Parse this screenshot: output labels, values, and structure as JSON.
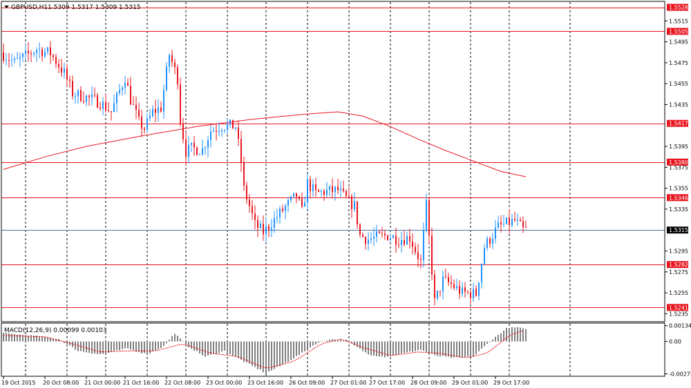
{
  "chart_data": {
    "type": "candlestick",
    "main": {
      "title": "GBPUSD,H1",
      "ohlc_label": "1.5309 1.5317 1.5309 1.5315",
      "ylim": [
        1.5228,
        1.5533
      ],
      "ticks": [
        "1.5515",
        "1.5495",
        "1.5475",
        "1.5455",
        "1.5435",
        "1.5395",
        "1.5375",
        "1.5355",
        "1.5335",
        "1.5295",
        "1.5275",
        "1.5255",
        "1.5235"
      ],
      "levels": [
        {
          "value": 1.5528,
          "label": "1.5528"
        },
        {
          "value": 1.5505,
          "label": "1.5505"
        },
        {
          "value": 1.5417,
          "label": "1.5417"
        },
        {
          "value": 1.538,
          "label": "1.5380"
        },
        {
          "value": 1.5346,
          "label": "1.5346"
        },
        {
          "value": 1.5282,
          "label": "1.5282"
        },
        {
          "value": 1.5241,
          "label": "1.5241"
        }
      ],
      "current_price": {
        "value": 1.5315,
        "label": "1.5315"
      },
      "moving_average": [
        [
          0,
          1.5373
        ],
        [
          15,
          1.5385
        ],
        [
          30,
          1.5395
        ],
        [
          50,
          1.5405
        ],
        [
          70,
          1.5414
        ],
        [
          90,
          1.5421
        ],
        [
          110,
          1.5426
        ],
        [
          121,
          1.5428
        ],
        [
          130,
          1.5424
        ],
        [
          140,
          1.5414
        ],
        [
          150,
          1.5402
        ],
        [
          160,
          1.5391
        ],
        [
          170,
          1.5381
        ],
        [
          180,
          1.5371
        ],
        [
          189,
          1.5366
        ]
      ],
      "candles_anchor": [
        [
          0,
          1.5485
        ],
        [
          5,
          1.5475
        ],
        [
          13,
          1.5488
        ],
        [
          18,
          1.5484
        ],
        [
          23,
          1.5465
        ],
        [
          26,
          1.5446
        ],
        [
          32,
          1.5441
        ],
        [
          36,
          1.5437
        ],
        [
          40,
          1.5428
        ],
        [
          43,
          1.5448
        ],
        [
          45,
          1.5461
        ],
        [
          47,
          1.544
        ],
        [
          50,
          1.5418
        ],
        [
          52,
          1.5412
        ],
        [
          55,
          1.5428
        ],
        [
          58,
          1.5432
        ],
        [
          61,
          1.5483
        ],
        [
          64,
          1.546
        ],
        [
          65,
          1.542
        ],
        [
          67,
          1.539
        ],
        [
          69,
          1.5393
        ],
        [
          73,
          1.5392
        ],
        [
          76,
          1.541
        ],
        [
          80,
          1.5415
        ],
        [
          85,
          1.5414
        ],
        [
          87,
          1.538
        ],
        [
          88,
          1.5354
        ],
        [
          90,
          1.5338
        ],
        [
          92,
          1.532
        ],
        [
          95,
          1.5313
        ],
        [
          98,
          1.5322
        ],
        [
          103,
          1.5337
        ],
        [
          107,
          1.5348
        ],
        [
          109,
          1.5332
        ],
        [
          111,
          1.536
        ],
        [
          114,
          1.535
        ],
        [
          118,
          1.5352
        ],
        [
          122,
          1.5353
        ],
        [
          126,
          1.5342
        ],
        [
          128,
          1.5338
        ],
        [
          130,
          1.531
        ],
        [
          133,
          1.5306
        ],
        [
          136,
          1.5308
        ],
        [
          140,
          1.531
        ],
        [
          144,
          1.5306
        ],
        [
          148,
          1.5308
        ],
        [
          150,
          1.5296
        ],
        [
          152,
          1.5284
        ],
        [
          154,
          1.5338
        ],
        [
          157,
          1.5246
        ],
        [
          160,
          1.5267
        ],
        [
          163,
          1.5263
        ],
        [
          167,
          1.5255
        ],
        [
          172,
          1.5254
        ],
        [
          175,
          1.5299
        ],
        [
          180,
          1.5318
        ],
        [
          184,
          1.5322
        ],
        [
          186,
          1.5324
        ],
        [
          189,
          1.5315
        ]
      ]
    },
    "macd": {
      "label": "MACD(12,26,9) 0.00099 0.00103",
      "ylim": [
        -0.0029,
        0.0015
      ],
      "ticks": [
        "0.00134",
        "0.00",
        "-0.00275"
      ],
      "histogram_anchor": [
        [
          0,
          0.0007
        ],
        [
          10,
          0.0005
        ],
        [
          20,
          0.0002
        ],
        [
          27,
          -0.0008
        ],
        [
          35,
          -0.0011
        ],
        [
          45,
          -0.0006
        ],
        [
          52,
          -0.0011
        ],
        [
          58,
          -0.0004
        ],
        [
          62,
          0.0007
        ],
        [
          66,
          -0.0003
        ],
        [
          73,
          -0.0013
        ],
        [
          80,
          -0.0008
        ],
        [
          87,
          -0.0017
        ],
        [
          95,
          -0.0027
        ],
        [
          100,
          -0.0021
        ],
        [
          108,
          -0.001
        ],
        [
          113,
          -0.0002
        ],
        [
          118,
          0.0002
        ],
        [
          124,
          0.0001
        ],
        [
          132,
          -0.0011
        ],
        [
          138,
          -0.0013
        ],
        [
          145,
          -0.001
        ],
        [
          151,
          -0.0007
        ],
        [
          156,
          -0.0012
        ],
        [
          163,
          -0.0014
        ],
        [
          170,
          -0.0013
        ],
        [
          176,
          0.0
        ],
        [
          182,
          0.0011
        ],
        [
          186,
          0.0012
        ],
        [
          189,
          0.001
        ]
      ],
      "signal_anchor": [
        [
          0,
          0.0005
        ],
        [
          15,
          0.0004
        ],
        [
          25,
          -0.0002
        ],
        [
          35,
          -0.0009
        ],
        [
          45,
          -0.0008
        ],
        [
          55,
          -0.0008
        ],
        [
          65,
          -0.0002
        ],
        [
          75,
          -0.001
        ],
        [
          85,
          -0.0013
        ],
        [
          95,
          -0.0023
        ],
        [
          105,
          -0.0017
        ],
        [
          115,
          -0.0002
        ],
        [
          122,
          0.0002
        ],
        [
          130,
          -0.0005
        ],
        [
          140,
          -0.0012
        ],
        [
          150,
          -0.0009
        ],
        [
          158,
          -0.001
        ],
        [
          167,
          -0.0014
        ],
        [
          175,
          -0.001
        ],
        [
          183,
          0.0005
        ],
        [
          189,
          0.001
        ]
      ]
    },
    "x_labels": [
      {
        "index": 0,
        "label": "19 Oct 2015"
      },
      {
        "index": 15,
        "label": "20 Oct 08:00"
      },
      {
        "index": 30,
        "label": "21 Oct 00:00"
      },
      {
        "index": 44,
        "label": "21 Oct 16:00"
      },
      {
        "index": 59,
        "label": "22 Oct 08:00"
      },
      {
        "index": 74,
        "label": "23 Oct 00:00"
      },
      {
        "index": 89,
        "label": "23 Oct 16:00"
      },
      {
        "index": 104,
        "label": "26 Oct 09:00"
      },
      {
        "index": 119,
        "label": "27 Oct 01:00"
      },
      {
        "index": 133,
        "label": "27 Oct 17:00"
      },
      {
        "index": 148,
        "label": "28 Oct 09:00"
      },
      {
        "index": 163,
        "label": "29 Oct 01:00"
      },
      {
        "index": 178,
        "label": "29 Oct 17:00"
      }
    ],
    "vertical_grid_indices": [
      8,
      23,
      37,
      52,
      66,
      81,
      95,
      110,
      125,
      140,
      154,
      169,
      183,
      205
    ],
    "bar_count": 190,
    "colors": {
      "bull": "#1e90ff",
      "bear": "#e8141e",
      "level_line": "#e8141e",
      "level_label_bg": "#e8141e",
      "current_line": "#4a6fa5",
      "current_label_bg": "#000000",
      "ma_line": "#e8141e",
      "macd_hist": "#808080",
      "macd_signal": "#e8141e",
      "grid": "#000000",
      "frame": "#000000"
    }
  }
}
